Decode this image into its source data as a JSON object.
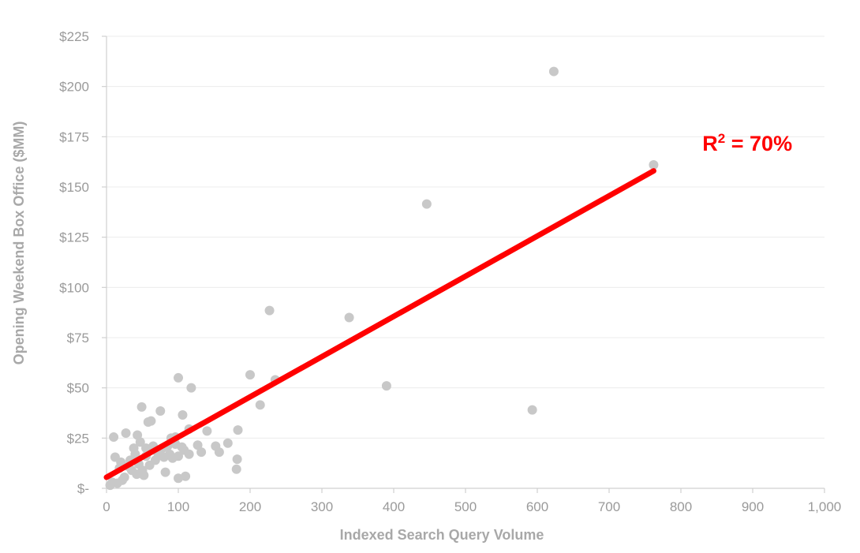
{
  "chart_data": {
    "type": "scatter",
    "title": "",
    "xlabel": "Indexed Search Query Volume",
    "ylabel": "Opening Weekend Box Office ($MM)",
    "xlim": [
      0,
      1000
    ],
    "ylim": [
      0,
      225
    ],
    "x_ticks": [
      0,
      100,
      200,
      300,
      400,
      500,
      600,
      700,
      800,
      900,
      1000
    ],
    "x_tick_labels": [
      "0",
      "100",
      "200",
      "300",
      "400",
      "500",
      "600",
      "700",
      "800",
      "900",
      "1,000"
    ],
    "y_ticks": [
      0,
      25,
      50,
      75,
      100,
      125,
      150,
      175,
      200,
      225
    ],
    "y_tick_labels": [
      "$-",
      "$25",
      "$50",
      "$75",
      "$100",
      "$125",
      "$150",
      "$175",
      "$200",
      "$225"
    ],
    "grid": "horizontal",
    "colors": {
      "points": "#c8c8c8",
      "trendline": "#ff0000",
      "gridline": "#ececec",
      "axis": "#d0d0d0",
      "tick_text": "#9a9a9a",
      "axis_title": "#a8a8a8"
    },
    "points": [
      [
        623,
        207.5
      ],
      [
        762,
        161
      ],
      [
        446,
        141.5
      ],
      [
        227,
        88.5
      ],
      [
        338,
        85
      ],
      [
        390,
        51
      ],
      [
        593,
        39
      ],
      [
        100,
        55
      ],
      [
        118,
        50
      ],
      [
        200,
        56.5
      ],
      [
        235,
        54
      ],
      [
        214,
        41.5
      ],
      [
        49,
        40.5
      ],
      [
        75,
        38.5
      ],
      [
        106,
        36.5
      ],
      [
        62,
        33.5
      ],
      [
        58,
        33
      ],
      [
        140,
        28.5
      ],
      [
        183,
        29
      ],
      [
        115,
        29.5
      ],
      [
        27,
        27.5
      ],
      [
        10,
        25.5
      ],
      [
        43,
        26.5
      ],
      [
        96,
        25.5
      ],
      [
        90,
        25
      ],
      [
        169,
        22.5
      ],
      [
        127,
        21.5
      ],
      [
        152,
        21
      ],
      [
        65,
        21
      ],
      [
        85,
        21
      ],
      [
        105,
        20.5
      ],
      [
        38,
        20
      ],
      [
        55,
        20
      ],
      [
        115,
        17
      ],
      [
        132,
        18
      ],
      [
        157,
        18
      ],
      [
        100,
        16
      ],
      [
        12,
        15.5
      ],
      [
        20,
        13
      ],
      [
        80,
        15.5
      ],
      [
        92,
        15
      ],
      [
        182,
        14.5
      ],
      [
        45,
        12
      ],
      [
        60,
        11.5
      ],
      [
        30,
        11
      ],
      [
        18,
        10
      ],
      [
        35,
        9
      ],
      [
        50,
        9
      ],
      [
        82,
        8
      ],
      [
        42,
        7
      ],
      [
        52,
        6.5
      ],
      [
        110,
        6
      ],
      [
        25,
        5.5
      ],
      [
        100,
        5
      ],
      [
        181,
        9.5
      ],
      [
        8,
        3
      ],
      [
        15,
        2.5
      ],
      [
        5,
        1.5
      ],
      [
        22,
        4
      ],
      [
        68,
        14
      ],
      [
        72,
        17
      ],
      [
        33,
        14
      ],
      [
        40,
        17
      ],
      [
        47,
        23
      ],
      [
        55,
        16
      ],
      [
        78,
        20
      ],
      [
        88,
        17
      ],
      [
        96,
        22
      ],
      [
        108,
        19
      ]
    ],
    "trendline": {
      "x": [
        0,
        762
      ],
      "y": [
        5.5,
        158
      ]
    },
    "annotation": {
      "base": "R",
      "superscript": "2",
      "rest": " = 70%",
      "x": 830,
      "y": 168
    }
  }
}
